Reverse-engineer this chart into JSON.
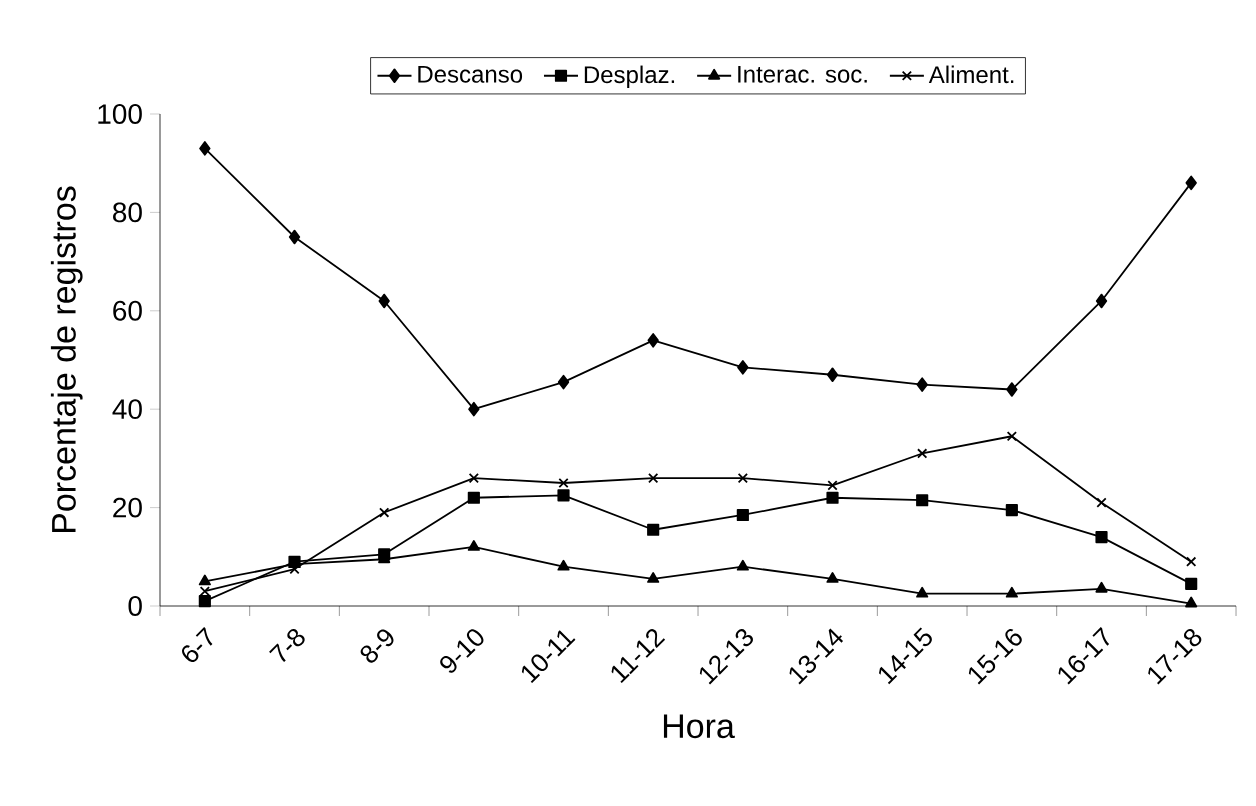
{
  "chart_data": {
    "type": "line",
    "xlabel": "Hora",
    "ylabel": "Porcentaje de registros",
    "categories": [
      "6-7",
      "7-8",
      "8-9",
      "9-10",
      "10-11",
      "11-12",
      "12-13",
      "13-14",
      "14-15",
      "15-16",
      "16-17",
      "17-18"
    ],
    "ylim": [
      0,
      100
    ],
    "yticks": [
      0,
      20,
      40,
      60,
      80,
      100
    ],
    "legend": "top",
    "grid": false,
    "series": [
      {
        "name": "Descanso",
        "color": "#000000",
        "marker": "diamond",
        "values": [
          93,
          75,
          62,
          40,
          45.5,
          54,
          48.5,
          47,
          45,
          44,
          62,
          86
        ]
      },
      {
        "name": "Desplaz.",
        "color": "#000000",
        "marker": "square",
        "values": [
          1,
          9,
          10.5,
          22,
          22.5,
          15.5,
          18.5,
          22,
          21.5,
          19.5,
          14,
          4.5
        ]
      },
      {
        "name": "Interac. soc.",
        "color": "#000000",
        "marker": "triangle",
        "values": [
          5,
          8.5,
          9.5,
          12,
          8,
          5.5,
          8,
          5.5,
          2.5,
          2.5,
          3.5,
          0.5
        ]
      },
      {
        "name": "Aliment.",
        "color": "#000000",
        "marker": "cross",
        "values": [
          3,
          7.5,
          19,
          26,
          25,
          26,
          26,
          24.5,
          31,
          34.5,
          21,
          9
        ]
      }
    ]
  }
}
